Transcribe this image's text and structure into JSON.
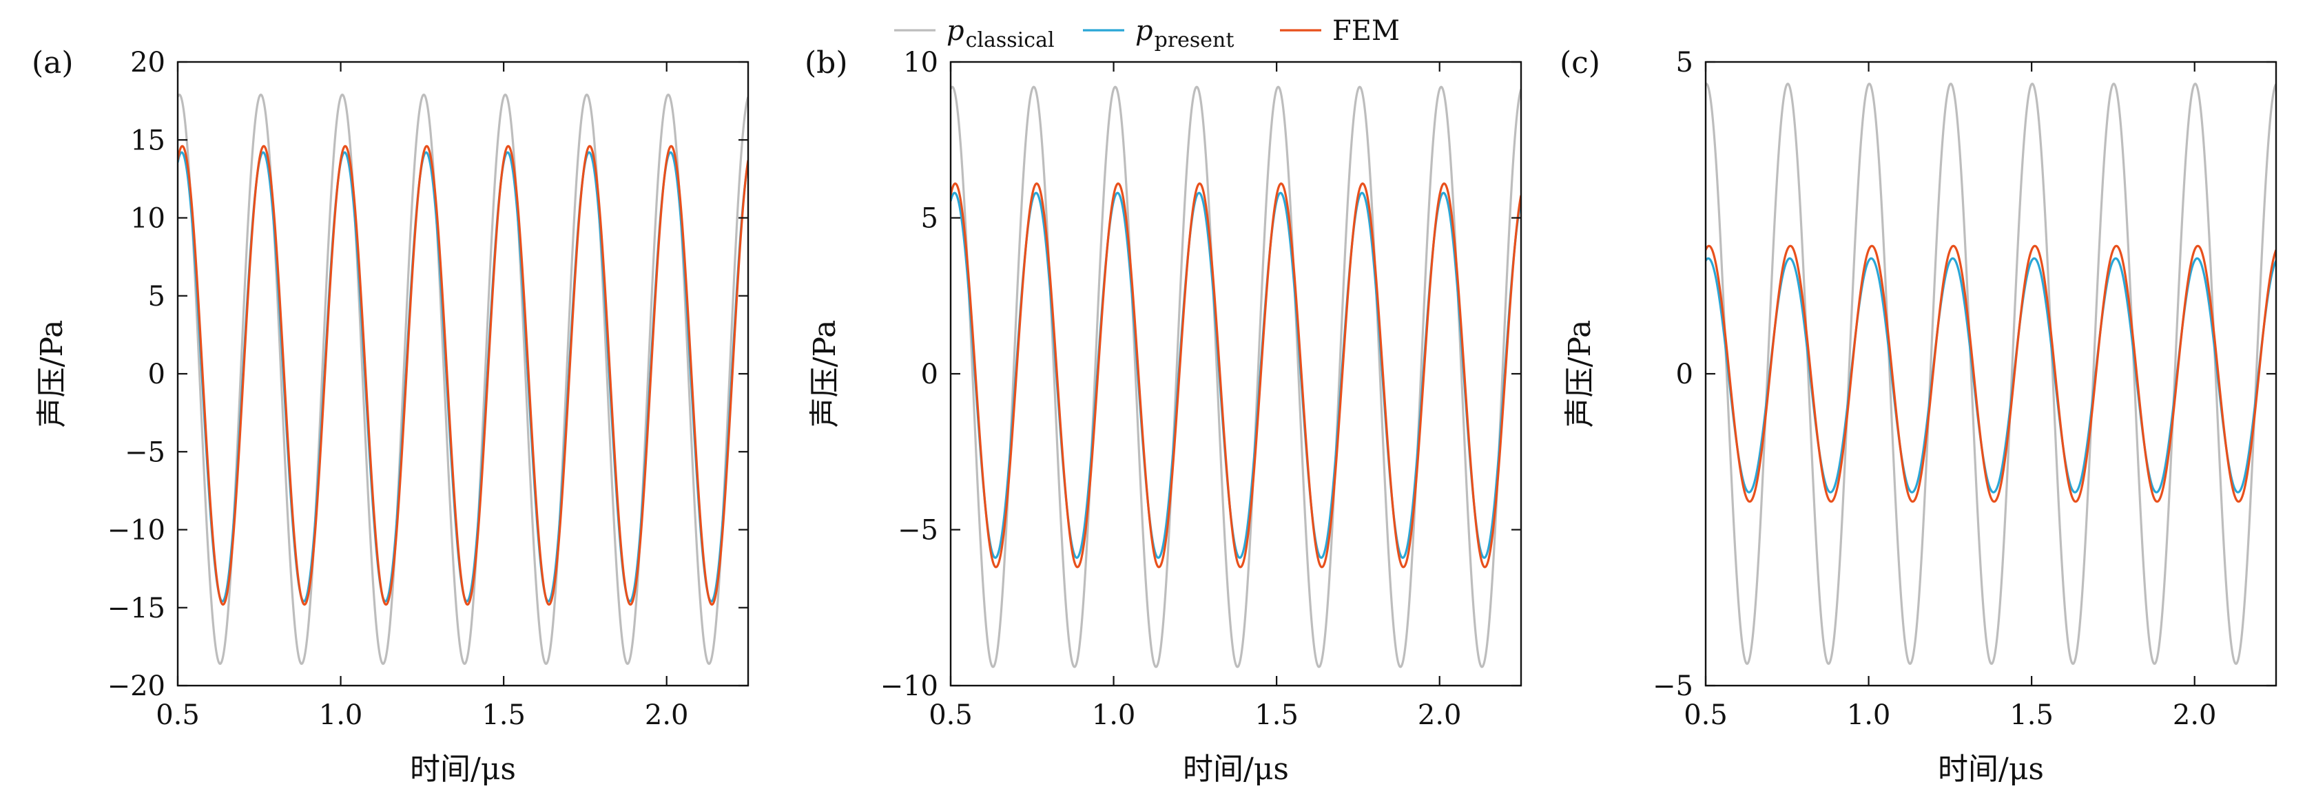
{
  "legend": {
    "items": [
      {
        "var": "p",
        "sub": "classical",
        "label": "",
        "color": "#bdbdbd"
      },
      {
        "var": "p",
        "sub": "present",
        "label": "",
        "color": "#2aa6d6"
      },
      {
        "var": "",
        "sub": "",
        "label": "FEM",
        "color": "#e8501c"
      }
    ]
  },
  "chart_data": [
    {
      "type": "line",
      "panel_label": "(a)",
      "xlabel": "时间/μs",
      "ylabel": "声压/Pa",
      "xlim": [
        0.5,
        2.25
      ],
      "ylim": [
        -20,
        20
      ],
      "xticks": [
        0.5,
        1.0,
        1.5,
        2.0
      ],
      "xtick_labels": [
        "0.5",
        "1.0",
        "1.5",
        "2.0"
      ],
      "yticks": [
        -20,
        -15,
        -10,
        -5,
        0,
        5,
        10,
        15,
        20
      ],
      "ytick_labels": [
        "−20",
        "−15",
        "−10",
        "−5",
        "0",
        "5",
        "10",
        "15",
        "20"
      ],
      "period_us": 0.25,
      "series": [
        {
          "name": "p_classical",
          "color": "#bdbdbd",
          "max": 17.9,
          "min": -18.6,
          "peak_time_us": 0.755
        },
        {
          "name": "p_present",
          "color": "#2aa6d6",
          "max": 14.2,
          "min": -14.6,
          "peak_time_us": 0.762
        },
        {
          "name": "FEM",
          "color": "#e8501c",
          "max": 14.6,
          "min": -14.8,
          "peak_time_us": 0.764
        }
      ]
    },
    {
      "type": "line",
      "panel_label": "(b)",
      "xlabel": "时间/μs",
      "ylabel": "声压/Pa",
      "xlim": [
        0.5,
        2.25
      ],
      "ylim": [
        -10,
        10
      ],
      "xticks": [
        0.5,
        1.0,
        1.5,
        2.0
      ],
      "xtick_labels": [
        "0.5",
        "1.0",
        "1.5",
        "2.0"
      ],
      "yticks": [
        -10,
        -5,
        0,
        5,
        10
      ],
      "ytick_labels": [
        "−10",
        "−5",
        "0",
        "5",
        "10"
      ],
      "period_us": 0.25,
      "series": [
        {
          "name": "p_classical",
          "color": "#bdbdbd",
          "max": 9.2,
          "min": -9.4,
          "peak_time_us": 0.755
        },
        {
          "name": "p_present",
          "color": "#2aa6d6",
          "max": 5.8,
          "min": -5.9,
          "peak_time_us": 0.762
        },
        {
          "name": "FEM",
          "color": "#e8501c",
          "max": 6.1,
          "min": -6.2,
          "peak_time_us": 0.764
        }
      ]
    },
    {
      "type": "line",
      "panel_label": "(c)",
      "xlabel": "时间/μs",
      "ylabel": "声压/Pa",
      "xlim": [
        0.5,
        2.25
      ],
      "ylim": [
        -5,
        5
      ],
      "xticks": [
        0.5,
        1.0,
        1.5,
        2.0
      ],
      "xtick_labels": [
        "0.5",
        "1.0",
        "1.5",
        "2.0"
      ],
      "yticks": [
        -5,
        0,
        5
      ],
      "ytick_labels": [
        "−5",
        "0",
        "5"
      ],
      "period_us": 0.25,
      "series": [
        {
          "name": "p_classical",
          "color": "#bdbdbd",
          "max": 4.65,
          "min": -4.65,
          "peak_time_us": 0.752
        },
        {
          "name": "p_present",
          "color": "#2aa6d6",
          "max": 1.85,
          "min": -1.9,
          "peak_time_us": 0.758
        },
        {
          "name": "FEM",
          "color": "#e8501c",
          "max": 2.05,
          "min": -2.05,
          "peak_time_us": 0.76
        }
      ]
    }
  ]
}
